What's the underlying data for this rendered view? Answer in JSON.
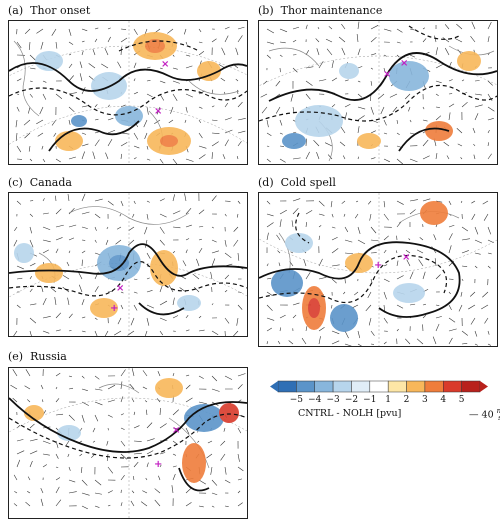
{
  "panels": [
    {
      "letter": "(a)",
      "title": "Thor onset"
    },
    {
      "letter": "(b)",
      "title": "Thor maintenance"
    },
    {
      "letter": "(c)",
      "title": "Canada"
    },
    {
      "letter": "(d)",
      "title": "Cold spell"
    },
    {
      "letter": "(e)",
      "title": "Russia"
    }
  ],
  "colorbar": {
    "ticks": [
      "−5",
      "−4",
      "−3",
      "−2",
      "−1",
      "1",
      "2",
      "3",
      "4",
      "5"
    ],
    "colors": [
      "#2f6fb5",
      "#5b94c9",
      "#88b6dc",
      "#b7d5ec",
      "#e0edf7",
      "#ffffff",
      "#fde6a6",
      "#f8b75a",
      "#ef7d3b",
      "#d93a2b",
      "#b8211c"
    ],
    "label": "CNTRL - NOLH [pvu]"
  },
  "reference_vector": {
    "value": "40",
    "unit_num": "m",
    "unit_den": "s"
  },
  "markers": {
    "color": "#c21fc2"
  }
}
